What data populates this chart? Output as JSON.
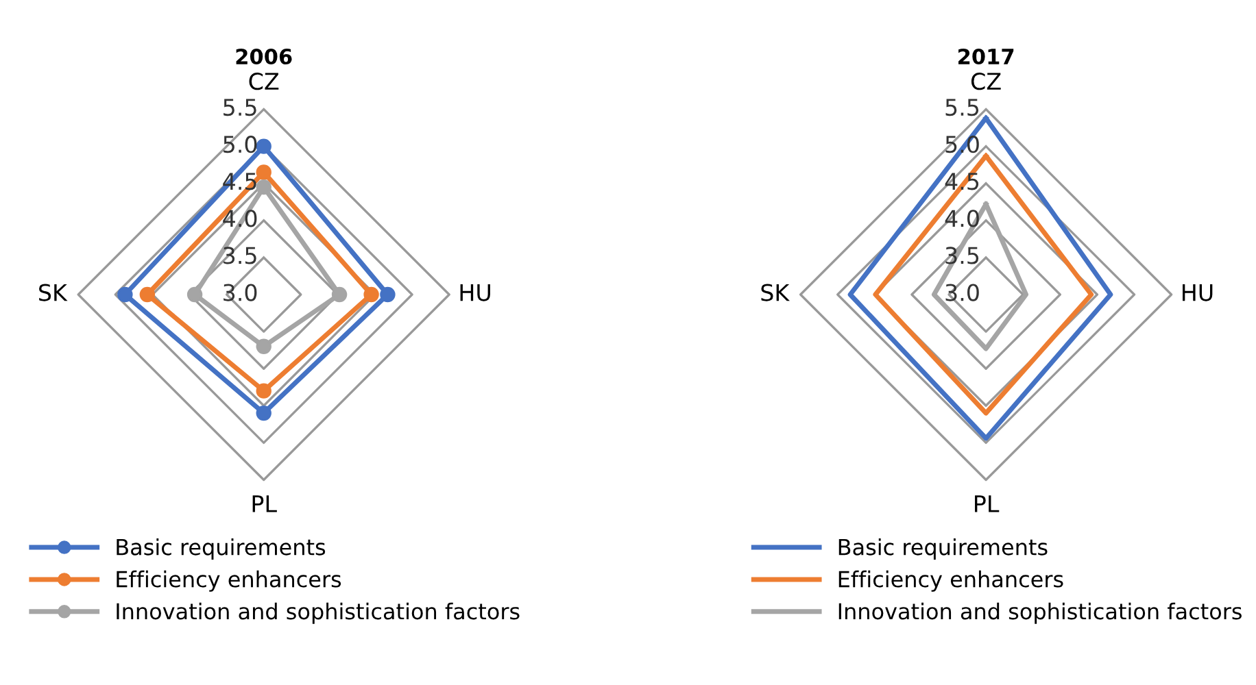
{
  "chart_data": [
    {
      "type": "radar",
      "title": "2006",
      "categories": [
        "CZ",
        "HU",
        "PL",
        "SK"
      ],
      "ylim": [
        3.0,
        5.5
      ],
      "yticks": [
        {
          "value": 3,
          "label": "3.0"
        },
        3.5,
        {
          "value": 4,
          "label": "4.0"
        },
        4.5,
        {
          "value": 5,
          "label": "5.0"
        },
        5.5
      ],
      "grid": true,
      "legend": "bottom",
      "marker": "circle",
      "series": [
        {
          "name": "Basic requirements",
          "color": "#4472c4",
          "values": [
            5.0,
            4.67,
            4.6,
            4.87
          ]
        },
        {
          "name": "Efficiency enhancers",
          "color": "#ed7d31",
          "values": [
            4.65,
            4.45,
            4.3,
            4.57
          ]
        },
        {
          "name": "Innovation and sophistication factors",
          "color": "#a5a5a5",
          "values": [
            4.45,
            4.02,
            3.7,
            3.93
          ]
        }
      ]
    },
    {
      "type": "radar",
      "title": "2017",
      "categories": [
        "CZ",
        "HU",
        "PL",
        "SK"
      ],
      "ylim": [
        3.0,
        5.5
      ],
      "yticks": [
        {
          "value": 3,
          "label": "3.0"
        },
        3.5,
        {
          "value": 4,
          "label": "4.0"
        },
        4.5,
        {
          "value": 5,
          "label": "5.0"
        },
        5.5
      ],
      "grid": true,
      "legend": "bottom",
      "marker": "none",
      "series": [
        {
          "name": "Basic requirements",
          "color": "#4472c4",
          "values": [
            5.38,
            4.68,
            4.94,
            4.83
          ]
        },
        {
          "name": "Efficiency enhancers",
          "color": "#ed7d31",
          "values": [
            4.87,
            4.42,
            4.6,
            4.49
          ]
        },
        {
          "name": "Innovation and sophistication factors",
          "color": "#a5a5a5",
          "values": [
            4.22,
            3.54,
            3.73,
            3.7
          ]
        }
      ]
    }
  ]
}
